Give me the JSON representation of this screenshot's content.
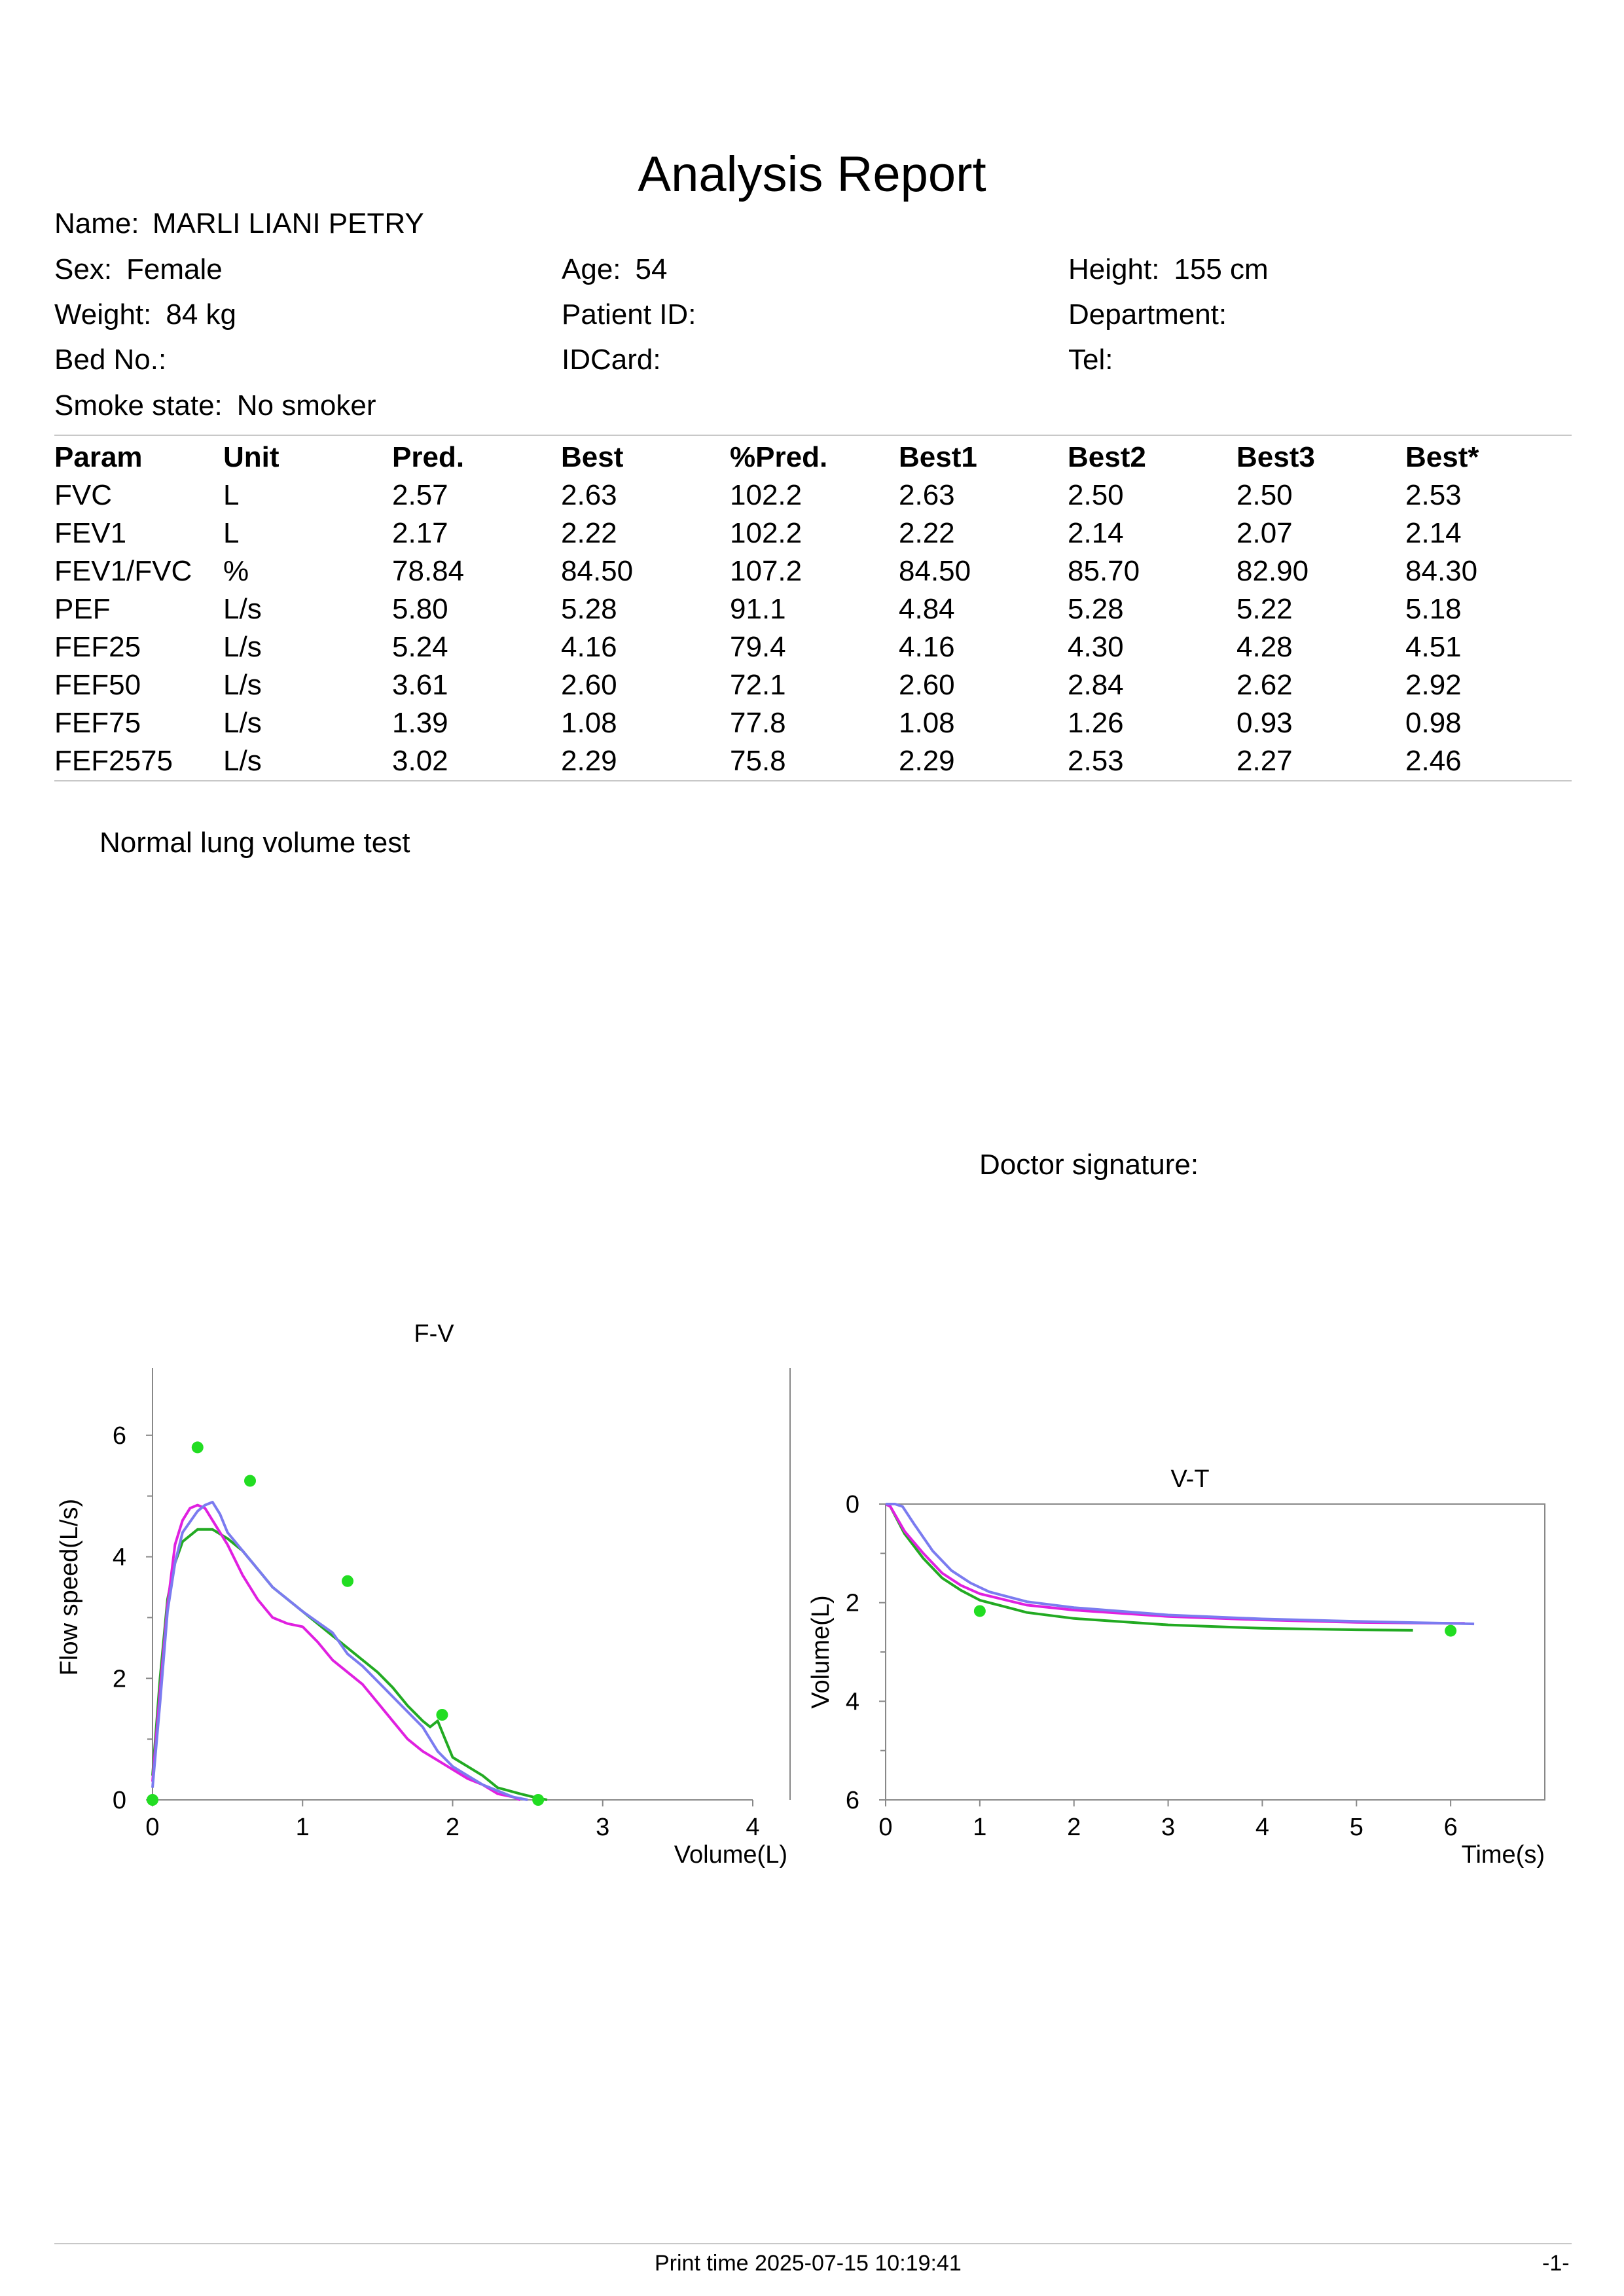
{
  "report": {
    "title": "Analysis Report",
    "name_label": "Name:",
    "name_value": "MARLI LIANI PETRY",
    "fields": [
      {
        "label": "Sex:",
        "value": "Female"
      },
      {
        "label": "Age:",
        "value": "54"
      },
      {
        "label": "Height:",
        "value": "155 cm"
      },
      {
        "label": "Weight:",
        "value": "84 kg"
      },
      {
        "label": "Patient ID:",
        "value": ""
      },
      {
        "label": "Department:",
        "value": ""
      },
      {
        "label": "Bed No.:",
        "value": ""
      },
      {
        "label": "IDCard:",
        "value": ""
      },
      {
        "label": "Tel:",
        "value": ""
      },
      {
        "label": "Smoke state:",
        "value": "No smoker"
      }
    ]
  },
  "table": {
    "headers": [
      "Param",
      "Unit",
      "Pred.",
      "Best",
      "%Pred.",
      "Best1",
      "Best2",
      "Best3",
      "Best*"
    ],
    "rows": [
      [
        "FVC",
        "L",
        "2.57",
        "2.63",
        "102.2",
        "2.63",
        "2.50",
        "2.50",
        "2.53"
      ],
      [
        "FEV1",
        "L",
        "2.17",
        "2.22",
        "102.2",
        "2.22",
        "2.14",
        "2.07",
        "2.14"
      ],
      [
        "FEV1/FVC",
        "%",
        "78.84",
        "84.50",
        "107.2",
        "84.50",
        "85.70",
        "82.90",
        "84.30"
      ],
      [
        "PEF",
        "L/s",
        "5.80",
        "5.28",
        "91.1",
        "4.84",
        "5.28",
        "5.22",
        "5.18"
      ],
      [
        "FEF25",
        "L/s",
        "5.24",
        "4.16",
        "79.4",
        "4.16",
        "4.30",
        "4.28",
        "4.51"
      ],
      [
        "FEF50",
        "L/s",
        "3.61",
        "2.60",
        "72.1",
        "2.60",
        "2.84",
        "2.62",
        "2.92"
      ],
      [
        "FEF75",
        "L/s",
        "1.39",
        "1.08",
        "77.8",
        "1.08",
        "1.26",
        "0.93",
        "0.98"
      ],
      [
        "FEF2575",
        "L/s",
        "3.02",
        "2.29",
        "75.8",
        "2.29",
        "2.53",
        "2.27",
        "2.46"
      ]
    ]
  },
  "note": "Normal lung volume test",
  "doctor_signature_label": "Doctor signature:",
  "chart_data": [
    {
      "type": "line",
      "title": "F-V",
      "xlabel": "Volume(L)",
      "ylabel": "Flow speed(L/s)",
      "xlim": [
        0,
        4
      ],
      "ylim": [
        0,
        7
      ],
      "xticks": [
        "0",
        "1",
        "2",
        "3",
        "4"
      ],
      "yticks": [
        "0",
        "2",
        "4",
        "6"
      ],
      "series": [
        {
          "color": "#22aa22",
          "points": [
            [
              0,
              0.4
            ],
            [
              0.05,
              2.0
            ],
            [
              0.1,
              3.3
            ],
            [
              0.15,
              3.9
            ],
            [
              0.2,
              4.25
            ],
            [
              0.3,
              4.45
            ],
            [
              0.4,
              4.45
            ],
            [
              0.5,
              4.3
            ],
            [
              0.6,
              4.1
            ],
            [
              0.7,
              3.8
            ],
            [
              0.8,
              3.5
            ],
            [
              1.0,
              3.1
            ],
            [
              1.2,
              2.7
            ],
            [
              1.4,
              2.3
            ],
            [
              1.5,
              2.1
            ],
            [
              1.6,
              1.85
            ],
            [
              1.7,
              1.55
            ],
            [
              1.8,
              1.3
            ],
            [
              1.85,
              1.2
            ],
            [
              1.9,
              1.3
            ],
            [
              1.95,
              1.0
            ],
            [
              2.0,
              0.7
            ],
            [
              2.1,
              0.55
            ],
            [
              2.2,
              0.4
            ],
            [
              2.3,
              0.2
            ],
            [
              2.45,
              0.1
            ],
            [
              2.55,
              0.04
            ],
            [
              2.63,
              0.0
            ]
          ]
        },
        {
          "color": "#e020e0",
          "points": [
            [
              0,
              0.3
            ],
            [
              0.05,
              1.8
            ],
            [
              0.1,
              3.2
            ],
            [
              0.15,
              4.2
            ],
            [
              0.2,
              4.6
            ],
            [
              0.25,
              4.8
            ],
            [
              0.3,
              4.85
            ],
            [
              0.35,
              4.8
            ],
            [
              0.4,
              4.6
            ],
            [
              0.5,
              4.2
            ],
            [
              0.6,
              3.7
            ],
            [
              0.7,
              3.3
            ],
            [
              0.8,
              3.0
            ],
            [
              0.9,
              2.9
            ],
            [
              1.0,
              2.85
            ],
            [
              1.1,
              2.6
            ],
            [
              1.2,
              2.3
            ],
            [
              1.4,
              1.9
            ],
            [
              1.5,
              1.6
            ],
            [
              1.6,
              1.3
            ],
            [
              1.7,
              1.0
            ],
            [
              1.8,
              0.8
            ],
            [
              1.9,
              0.65
            ],
            [
              2.0,
              0.5
            ],
            [
              2.1,
              0.35
            ],
            [
              2.2,
              0.25
            ],
            [
              2.3,
              0.1
            ],
            [
              2.4,
              0.05
            ],
            [
              2.45,
              0.0
            ]
          ]
        },
        {
          "color": "#7b7bf0",
          "points": [
            [
              0,
              0.2
            ],
            [
              0.05,
              1.6
            ],
            [
              0.1,
              3.1
            ],
            [
              0.15,
              3.9
            ],
            [
              0.2,
              4.4
            ],
            [
              0.3,
              4.75
            ],
            [
              0.35,
              4.85
            ],
            [
              0.4,
              4.9
            ],
            [
              0.45,
              4.7
            ],
            [
              0.5,
              4.4
            ],
            [
              0.6,
              4.1
            ],
            [
              0.7,
              3.8
            ],
            [
              0.8,
              3.5
            ],
            [
              1.0,
              3.1
            ],
            [
              1.2,
              2.75
            ],
            [
              1.3,
              2.4
            ],
            [
              1.4,
              2.2
            ],
            [
              1.5,
              1.95
            ],
            [
              1.6,
              1.7
            ],
            [
              1.7,
              1.45
            ],
            [
              1.8,
              1.2
            ],
            [
              1.9,
              0.8
            ],
            [
              2.0,
              0.55
            ],
            [
              2.1,
              0.4
            ],
            [
              2.2,
              0.25
            ],
            [
              2.3,
              0.15
            ],
            [
              2.4,
              0.05
            ],
            [
              2.5,
              0.0
            ]
          ]
        }
      ],
      "markers": {
        "color": "#22dd22",
        "points": [
          [
            0.3,
            5.8
          ],
          [
            0.65,
            5.25
          ],
          [
            1.3,
            3.6
          ],
          [
            1.93,
            1.4
          ],
          [
            2.57,
            0.0
          ],
          [
            0.0,
            0.0
          ]
        ]
      }
    },
    {
      "type": "line",
      "title": "V-T",
      "xlabel": "Time(s)",
      "ylabel": "Volume(L)",
      "xlim": [
        0,
        7
      ],
      "ylim": [
        0,
        6
      ],
      "xticks": [
        "0",
        "1",
        "2",
        "3",
        "4",
        "5",
        "6"
      ],
      "yticks": [
        "0",
        "2",
        "4",
        "6"
      ],
      "y_inverted": true,
      "series": [
        {
          "color": "#22aa22",
          "points": [
            [
              0,
              0
            ],
            [
              0.05,
              0.05
            ],
            [
              0.2,
              0.6
            ],
            [
              0.4,
              1.1
            ],
            [
              0.6,
              1.5
            ],
            [
              0.8,
              1.75
            ],
            [
              1.0,
              1.95
            ],
            [
              1.5,
              2.2
            ],
            [
              2.0,
              2.32
            ],
            [
              3.0,
              2.45
            ],
            [
              4.0,
              2.52
            ],
            [
              5.0,
              2.55
            ],
            [
              5.6,
              2.56
            ]
          ]
        },
        {
          "color": "#e020e0",
          "points": [
            [
              0,
              0
            ],
            [
              0.05,
              0.05
            ],
            [
              0.2,
              0.55
            ],
            [
              0.4,
              1.0
            ],
            [
              0.6,
              1.4
            ],
            [
              0.8,
              1.65
            ],
            [
              1.0,
              1.82
            ],
            [
              1.5,
              2.05
            ],
            [
              2.0,
              2.15
            ],
            [
              3.0,
              2.28
            ],
            [
              4.0,
              2.35
            ],
            [
              5.0,
              2.4
            ],
            [
              6.0,
              2.42
            ],
            [
              6.15,
              2.42
            ]
          ]
        },
        {
          "color": "#7b7bf0",
          "points": [
            [
              0,
              0
            ],
            [
              0.1,
              0.0
            ],
            [
              0.18,
              0.05
            ],
            [
              0.3,
              0.4
            ],
            [
              0.5,
              0.95
            ],
            [
              0.7,
              1.35
            ],
            [
              0.9,
              1.6
            ],
            [
              1.1,
              1.78
            ],
            [
              1.5,
              1.98
            ],
            [
              2.0,
              2.1
            ],
            [
              3.0,
              2.25
            ],
            [
              4.0,
              2.33
            ],
            [
              5.0,
              2.38
            ],
            [
              6.0,
              2.42
            ],
            [
              6.25,
              2.43
            ]
          ]
        }
      ],
      "markers": {
        "color": "#22dd22",
        "points": [
          [
            1.0,
            2.17
          ],
          [
            6.0,
            2.57
          ]
        ]
      }
    }
  ],
  "footer": {
    "print_time": "Print time 2025-07-15 10:19:41",
    "page": "-1-"
  }
}
